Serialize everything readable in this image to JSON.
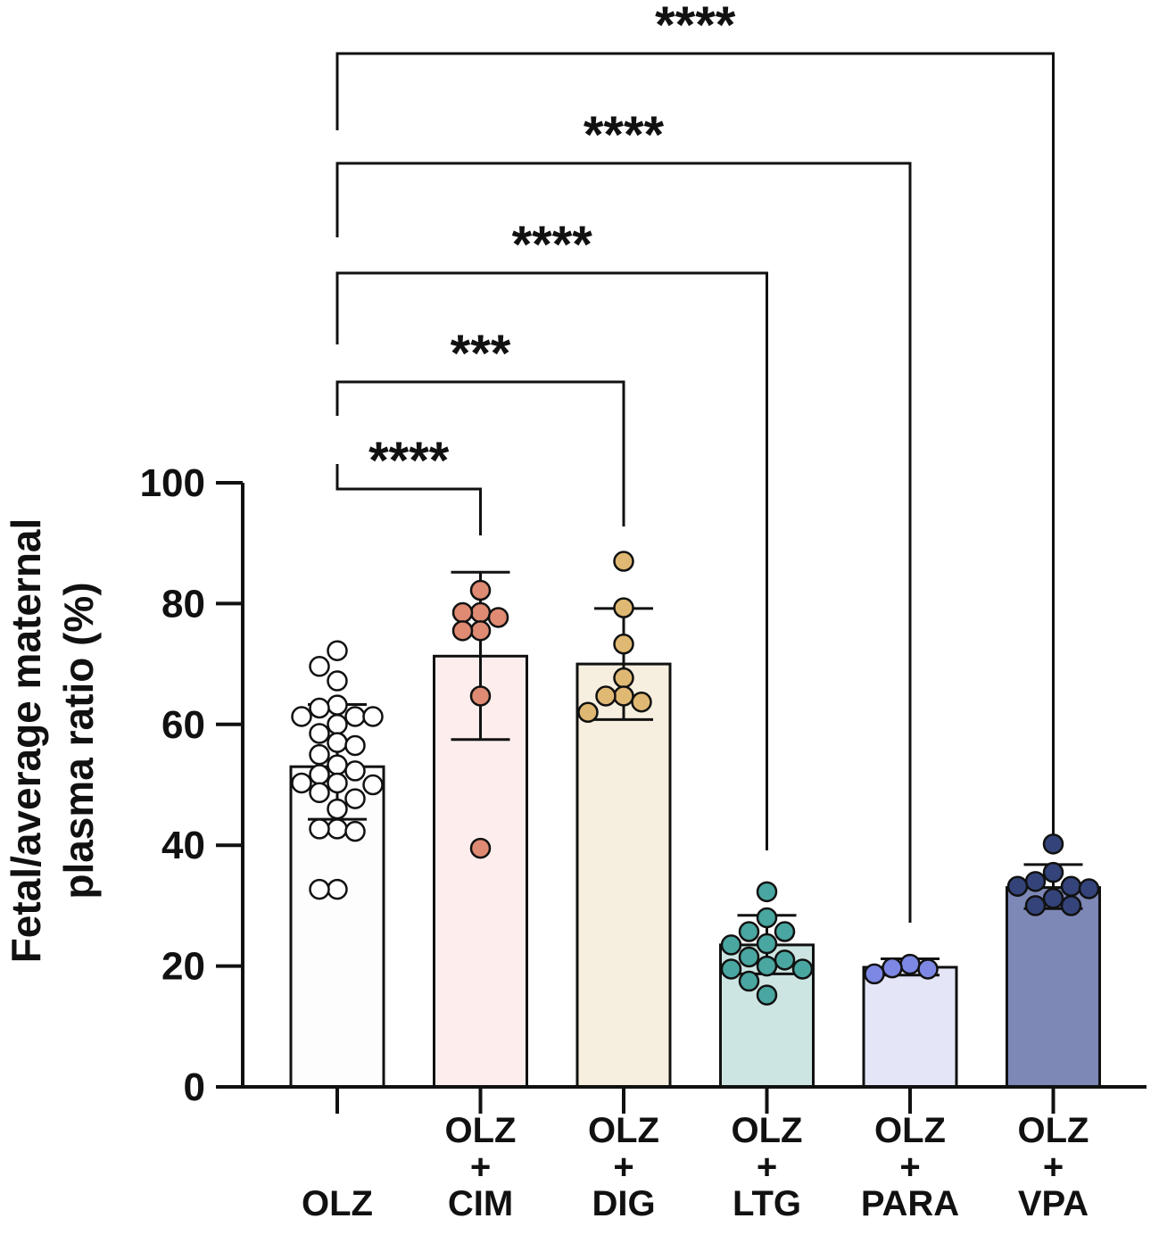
{
  "chart_data": {
    "type": "bar",
    "title": "",
    "ylabel": [
      "Fetal/average maternal",
      "plasma ratio (%)"
    ],
    "xlabel": "",
    "ylim": [
      0,
      100
    ],
    "yticks": [
      0,
      20,
      40,
      60,
      80,
      100
    ],
    "grid": false,
    "legend": "none",
    "categories": [
      {
        "lines": [
          "OLZ"
        ]
      },
      {
        "lines": [
          "OLZ",
          "+",
          "CIM"
        ]
      },
      {
        "lines": [
          "OLZ",
          "+",
          "DIG"
        ]
      },
      {
        "lines": [
          "OLZ",
          "+",
          "LTG"
        ]
      },
      {
        "lines": [
          "OLZ",
          "+",
          "PARA"
        ]
      },
      {
        "lines": [
          "OLZ",
          "+",
          "VPA"
        ]
      }
    ],
    "values": [
      53,
      71.3,
      70,
      23.5,
      19.8,
      33
    ],
    "errors": [
      [
        44.3,
        63.3
      ],
      [
        57.5,
        85.2
      ],
      [
        60.8,
        79.2
      ],
      [
        18.7,
        28.4
      ],
      [
        18.5,
        21.2
      ],
      [
        29.5,
        36.8
      ]
    ],
    "bar_colors": [
      "#fdfdfd",
      "#fdeeed",
      "#f6efdf",
      "#cde5e2",
      "#e4e6f8",
      "#7d88b7"
    ],
    "point_colors": [
      "#ffffff",
      "#df8a72",
      "#dfb873",
      "#4aa6a0",
      "#7d88e4",
      "#34447a"
    ],
    "points": [
      [
        72.2,
        69.6,
        67.2,
        62.7,
        63.2,
        61.3,
        61.3,
        61.3,
        60.0,
        58.5,
        57.0,
        56.5,
        55.0,
        53.3,
        52.3,
        51.7,
        50.3,
        50.3,
        50.0,
        48.7,
        47.7,
        46.0,
        42.7,
        42.7,
        42.3,
        32.7,
        32.7
      ],
      [
        82.2,
        78.5,
        78.5,
        77.7,
        75.5,
        75.5,
        64.7,
        39.5
      ],
      [
        87.0,
        79.3,
        73.3,
        67.7,
        64.7,
        64.7,
        63.7,
        62.0
      ],
      [
        32.3,
        28.0,
        25.7,
        25.7,
        23.7,
        23.5,
        21.5,
        21.0,
        20.0,
        19.5,
        19.5,
        17.5,
        15.2
      ],
      [
        20.3,
        19.7,
        19.5,
        18.7
      ],
      [
        40.2,
        35.5,
        34.0,
        33.2,
        33.2,
        32.8,
        31.2,
        30.0,
        30.0
      ]
    ],
    "comparisons": [
      {
        "from": 0,
        "to": 1,
        "label": "****"
      },
      {
        "from": 0,
        "to": 2,
        "label": "***"
      },
      {
        "from": 0,
        "to": 3,
        "label": "****"
      },
      {
        "from": 0,
        "to": 4,
        "label": "****"
      },
      {
        "from": 0,
        "to": 5,
        "label": "****"
      }
    ]
  }
}
